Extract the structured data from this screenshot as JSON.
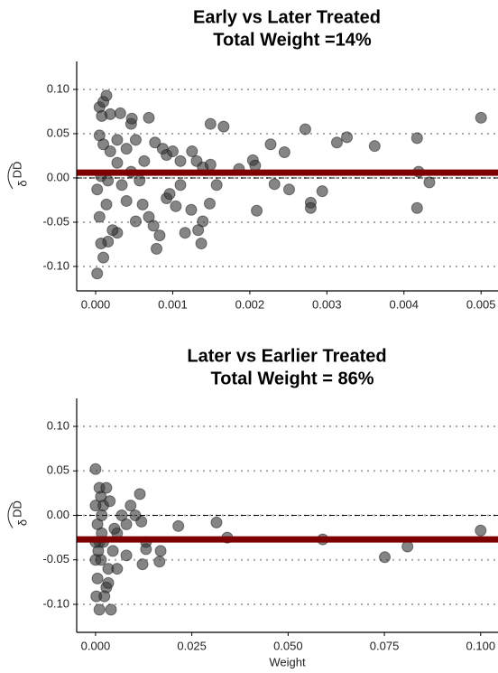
{
  "chart_data": [
    {
      "type": "scatter",
      "title": "Early vs Later Treated",
      "subtitle": "Total Weight =14%",
      "ylabel": "δ",
      "ylabel_sup": "DD",
      "color": "#333333",
      "line_color": "#7f0000",
      "hline": 0.006,
      "zero_line": 0,
      "grid": true,
      "xlim": [
        -0.000246,
        0.00522
      ],
      "ylim": [
        -0.1276,
        0.1316
      ],
      "xticks": [
        {
          "value": 0,
          "label": "0.000"
        },
        {
          "value": 0.001,
          "label": "0.001"
        },
        {
          "value": 0.002,
          "label": "0.002"
        },
        {
          "value": 0.003,
          "label": "0.003"
        },
        {
          "value": 0.004,
          "label": "0.004"
        },
        {
          "value": 0.005,
          "label": "0.005"
        }
      ],
      "yticks": [
        {
          "value": -0.1,
          "label": "-0.10"
        },
        {
          "value": -0.05,
          "label": "-0.05"
        },
        {
          "value": 0,
          "label": "0.00"
        },
        {
          "value": 0.05,
          "label": "0.05"
        },
        {
          "value": 0.1,
          "label": "0.10"
        }
      ],
      "x": [
        2e-05,
        5e-05,
        0.0001,
        0.00014,
        8e-05,
        0.00019,
        0.00032,
        0.00046,
        0.00069,
        0.00047,
        5e-05,
        0.0001,
        0.00019,
        0.00028,
        0.0004,
        0.00052,
        0.00063,
        0.00077,
        0.00087,
        0.00092,
        0.001,
        0.0011,
        0.00125,
        0.00131,
        0.00139,
        0.00149,
        0.00149,
        0.00166,
        0.00186,
        0.00204,
        0.00207,
        0.00227,
        0.00245,
        0.00272,
        0.00313,
        0.00326,
        0.00362,
        0.00417,
        0.005,
        0.00419,
        0.00433,
        0.00417,
        0.00279,
        0.00279,
        0.00294,
        0.00251,
        0.00232,
        0.00209,
        0.00157,
        0.00139,
        0.00133,
        0.00116,
        0.00124,
        0.00104,
        0.00083,
        0.00075,
        0.00069,
        0.00052,
        0.0004,
        0.00028,
        0.00016,
        7e-05,
        0.0001,
        0.00022,
        5e-05,
        2e-05,
        7e-05,
        0.00016,
        0.00034,
        0.00057,
        0.00092,
        0.0011,
        0.00028,
        0.00046,
        0.00079,
        0.00137,
        0.00096,
        0.00148,
        0.00061,
        0.00014
      ],
      "values": [
        -0.108,
        0.08,
        0.086,
        0.093,
        0.07,
        0.072,
        0.073,
        0.061,
        0.068,
        0.067,
        0.048,
        0.038,
        0.03,
        0.043,
        0.033,
        0.043,
        0.019,
        0.04,
        0.033,
        0.026,
        0.03,
        0.019,
        0.03,
        0.019,
        0.012,
        0.015,
        0.061,
        0.058,
        0.01,
        0.02,
        0.014,
        0.038,
        0.029,
        0.055,
        0.04,
        0.046,
        0.036,
        0.045,
        0.068,
        0.007,
        -0.005,
        -0.034,
        -0.028,
        -0.034,
        -0.015,
        -0.013,
        -0.007,
        -0.037,
        -0.008,
        -0.049,
        -0.059,
        -0.062,
        -0.036,
        -0.032,
        -0.065,
        -0.054,
        -0.044,
        -0.049,
        -0.026,
        -0.062,
        -0.072,
        -0.074,
        -0.09,
        -0.059,
        -0.044,
        -0.013,
        0.002,
        -0.003,
        -0.008,
        -0.003,
        -0.023,
        -0.008,
        0.017,
        0.007,
        -0.08,
        -0.074,
        -0.018,
        -0.029,
        -0.03,
        -0.03
      ]
    },
    {
      "type": "scatter",
      "title": "Later vs Earlier Treated",
      "subtitle": "Total Weight = 86%",
      "ylabel": "δ",
      "ylabel_sup": "DD",
      "xlabel": "Weight",
      "color": "#333333",
      "line_color": "#7f0000",
      "hline": -0.027,
      "zero_line": 0,
      "grid": true,
      "xlim": [
        -0.0049,
        0.1045
      ],
      "ylim": [
        -0.1315,
        0.1315
      ],
      "xticks": [
        {
          "value": 0,
          "label": "0.000"
        },
        {
          "value": 0.025,
          "label": "0.025"
        },
        {
          "value": 0.05,
          "label": "0.050"
        },
        {
          "value": 0.075,
          "label": "0.075"
        },
        {
          "value": 0.1,
          "label": "0.100"
        }
      ],
      "yticks": [
        {
          "value": -0.1,
          "label": "-0.10"
        },
        {
          "value": -0.05,
          "label": "-0.05"
        },
        {
          "value": 0,
          "label": "0.00"
        },
        {
          "value": 0.05,
          "label": "0.05"
        },
        {
          "value": 0.1,
          "label": "0.10"
        }
      ],
      "x": [
        0,
        0.001,
        0.0014,
        0.002,
        0.0005,
        0.001,
        0.0014,
        0.0005,
        0.0002,
        0.001,
        0.004,
        0.0028,
        0.0033,
        0.0045,
        0.0056,
        0.0068,
        0.008,
        0.0091,
        0.0103,
        0.0115,
        0.0119,
        0.0131,
        0.0131,
        0.0169,
        0.0166,
        0.0122,
        0.0215,
        0.0314,
        0.0342,
        0.059,
        0.0751,
        0.081,
        0.1,
        0.008,
        0.0056,
        0.002,
        0.0028,
        0.0037,
        0.0049,
        0.0016,
        0.0007,
        0.0023,
        0.0033,
        0.0016,
        0,
        0,
        0
      ],
      "values": [
        0.052,
        0.031,
        0.021,
        0.011,
        -0.01,
        -0.03,
        -0.05,
        -0.071,
        -0.091,
        -0.106,
        -0.106,
        -0.081,
        -0.06,
        -0.04,
        -0.02,
        0,
        -0.01,
        0.011,
        0,
        0.024,
        -0.007,
        -0.03,
        -0.038,
        -0.04,
        -0.052,
        -0.055,
        -0.012,
        -0.008,
        -0.025,
        -0.027,
        -0.047,
        -0.035,
        -0.017,
        -0.045,
        -0.06,
        -0.03,
        0.031,
        0.016,
        -0.015,
        -0.02,
        -0.04,
        -0.091,
        -0.076,
        0,
        -0.03,
        0.011,
        -0.05
      ]
    }
  ]
}
